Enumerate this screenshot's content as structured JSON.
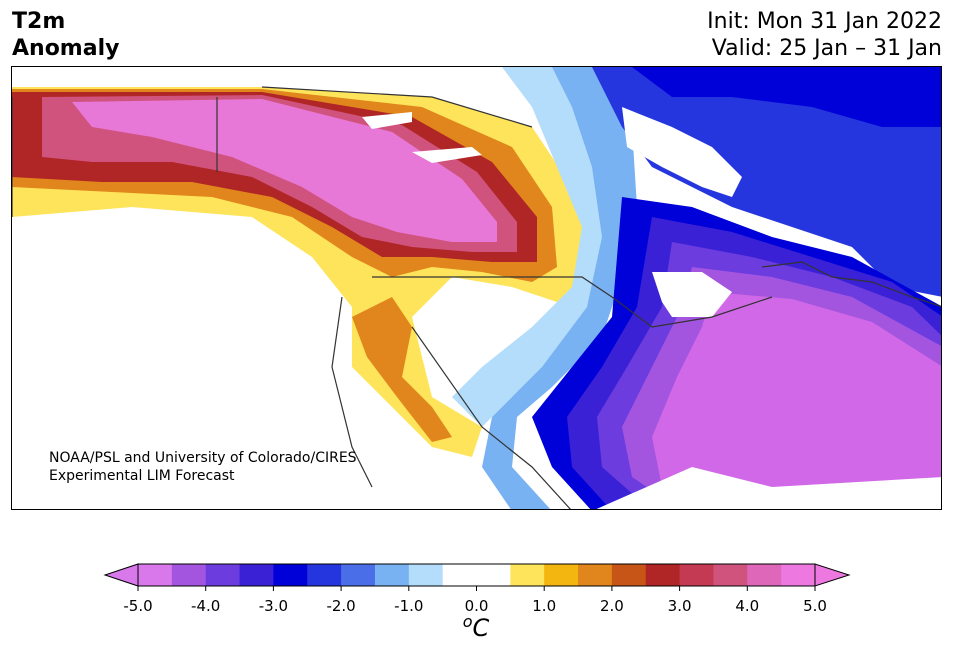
{
  "title": {
    "line1": "T2m",
    "line2": "Anomaly"
  },
  "header": {
    "init": "Init: Mon 31 Jan 2022",
    "valid": "Valid: 25 Jan – 31 Jan"
  },
  "credit": {
    "line1": "NOAA/PSL and University of Colorado/CIRES",
    "line2": "Experimental LIM Forecast"
  },
  "colorbar": {
    "unit_base": "C",
    "unit_sup": "o",
    "tick_labels": [
      "-5.0",
      "-4.0",
      "-3.0",
      "-2.0",
      "-1.0",
      "0.0",
      "1.0",
      "2.0",
      "3.0",
      "4.0",
      "5.0"
    ],
    "colors": [
      "#d878ea",
      "#a455e0",
      "#6d3cdf",
      "#3a21d6",
      "#0000d9",
      "#2536de",
      "#4a6ee8",
      "#79b2f2",
      "#b4ddfb",
      "#ffffff",
      "#ffffff",
      "#fde45a",
      "#f3b510",
      "#e0861c",
      "#c85518",
      "#b02525",
      "#c43a52",
      "#d0537e",
      "#de67b9",
      "#ec78e0"
    ],
    "under_color": "#d878ea",
    "over_color": "#ec78e0"
  },
  "regions": {
    "warm_core": "#e878d8",
    "cold_core": "#d068e8",
    "ocean": "#ffffff"
  }
}
